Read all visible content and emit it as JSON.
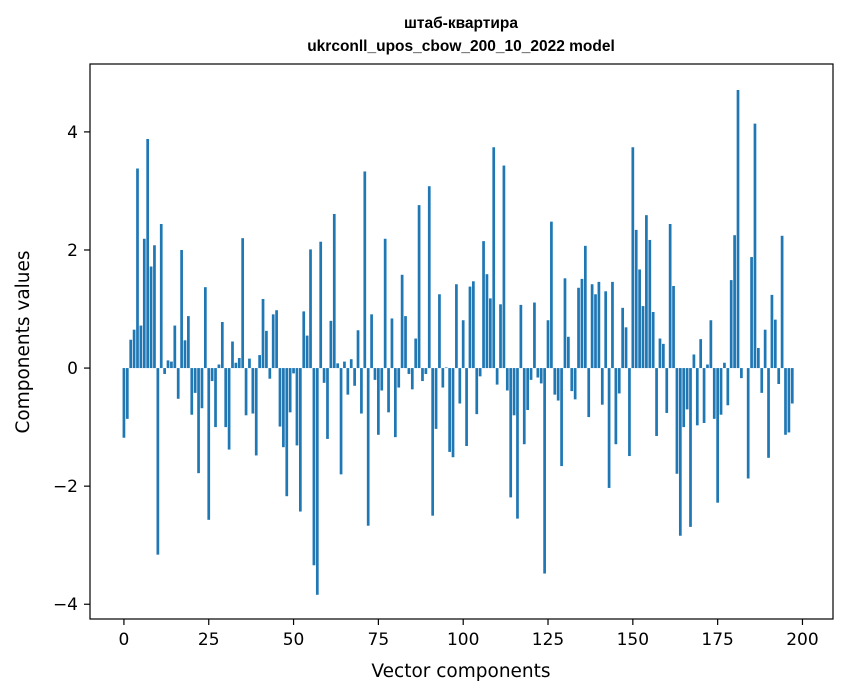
{
  "chart_data": {
    "type": "bar",
    "title": "штаб-квартира",
    "subtitle": "ukrconll_upos_cbow_200_10_2022 model",
    "xlabel": "Vector components",
    "ylabel": "Components values",
    "xlim": [
      -10,
      209
    ],
    "ylim": [
      -4.25,
      5.15
    ],
    "xticks": [
      0,
      25,
      50,
      75,
      100,
      125,
      150,
      175,
      200
    ],
    "yticks": [
      -4,
      -2,
      0,
      2,
      4
    ],
    "ytick_labels": [
      "−4",
      "−2",
      "0",
      "2",
      "4"
    ],
    "bar_color": "#1f77b4",
    "grid": false,
    "values": [
      -1.18,
      -0.86,
      0.48,
      0.65,
      3.38,
      0.72,
      2.19,
      3.88,
      1.72,
      2.08,
      -3.16,
      2.44,
      -0.1,
      0.13,
      0.11,
      0.72,
      -0.52,
      2.0,
      0.47,
      0.88,
      -0.79,
      -0.42,
      -1.78,
      -0.68,
      1.37,
      -2.57,
      -0.22,
      -1.0,
      0.06,
      0.78,
      -1.0,
      -1.38,
      0.45,
      0.09,
      0.17,
      2.2,
      -0.8,
      0.16,
      -0.77,
      -1.48,
      0.22,
      1.17,
      0.63,
      -0.18,
      0.91,
      0.98,
      -0.99,
      -1.34,
      -2.17,
      -0.75,
      -0.09,
      -1.31,
      -2.43,
      0.96,
      0.55,
      2.01,
      -3.34,
      -3.84,
      2.14,
      -0.25,
      -1.2,
      0.8,
      2.61,
      0.08,
      -1.8,
      0.11,
      -0.45,
      0.15,
      -0.3,
      0.64,
      -0.77,
      3.33,
      -2.67,
      0.91,
      -0.2,
      -1.13,
      -0.38,
      2.19,
      -0.75,
      0.84,
      -1.17,
      -0.33,
      1.58,
      0.88,
      -0.1,
      -0.36,
      0.5,
      2.76,
      -0.22,
      -0.1,
      3.08,
      -2.5,
      -1.03,
      1.25,
      -0.33,
      0.01,
      -1.42,
      -1.51,
      1.42,
      -0.6,
      0.81,
      -1.32,
      1.38,
      1.47,
      -0.78,
      -0.14,
      2.15,
      1.59,
      1.18,
      3.74,
      -0.28,
      1.08,
      3.43,
      -0.38,
      -2.19,
      -0.8,
      -2.55,
      1.07,
      -1.29,
      -0.71,
      -0.2,
      1.11,
      -0.16,
      -0.26,
      -3.48,
      0.81,
      2.48,
      -0.45,
      -0.55,
      -1.66,
      1.52,
      0.53,
      -0.39,
      -0.53,
      1.36,
      1.51,
      2.07,
      -0.83,
      1.42,
      1.25,
      1.46,
      -0.62,
      1.3,
      -2.03,
      1.46,
      -1.29,
      -0.43,
      1.02,
      0.69,
      -1.49,
      3.74,
      2.34,
      1.67,
      1.05,
      2.59,
      2.17,
      0.95,
      -1.15,
      0.5,
      0.41,
      -0.76,
      2.44,
      1.39,
      -1.79,
      -2.84,
      -1.0,
      -0.7,
      -2.69,
      0.23,
      -0.97,
      0.49,
      -0.93,
      0.06,
      0.81,
      -0.86,
      -2.28,
      -0.79,
      0.09,
      -0.63,
      1.49,
      2.25,
      4.71,
      -0.17,
      0.0,
      -1.87,
      1.88,
      4.14,
      0.34,
      -0.42,
      0.65,
      -1.52,
      1.24,
      0.82,
      -0.27,
      2.24,
      -1.13,
      -1.09,
      -0.6,
      0.0,
      0.0
    ]
  }
}
